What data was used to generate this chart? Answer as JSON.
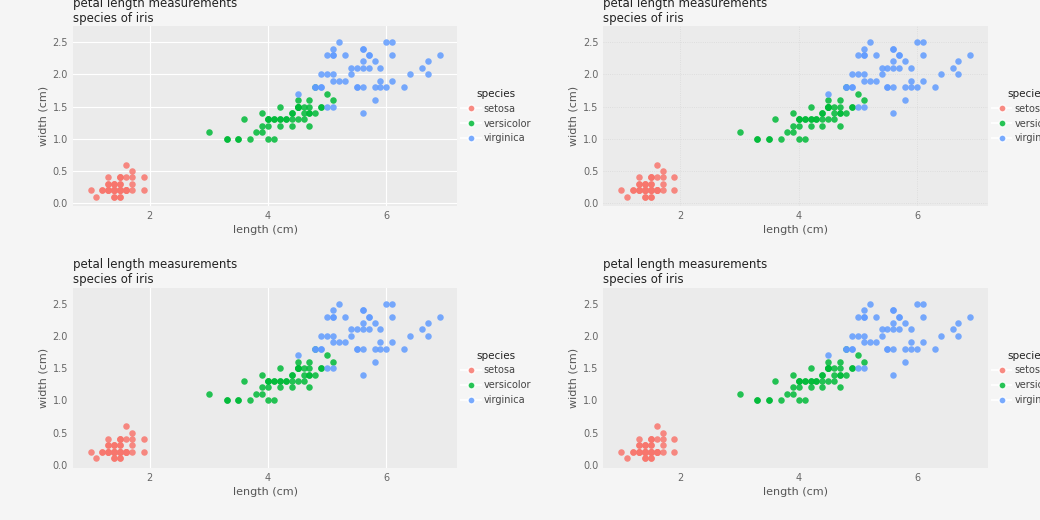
{
  "title": "petal length measurements",
  "subtitle": "species of iris",
  "xlabel": "length (cm)",
  "ylabel": "width (cm)",
  "legend_title": "species",
  "species": [
    "setosa",
    "versicolor",
    "virginica"
  ],
  "colors": {
    "setosa": "#F8766D",
    "versicolor": "#00BA38",
    "virginica": "#619CFF"
  },
  "setosa_length": [
    1.4,
    1.4,
    1.3,
    1.5,
    1.4,
    1.7,
    1.4,
    1.5,
    1.4,
    1.5,
    1.5,
    1.6,
    1.4,
    1.1,
    1.2,
    1.5,
    1.3,
    1.4,
    1.7,
    1.5,
    1.7,
    1.5,
    1.0,
    1.7,
    1.9,
    1.6,
    1.6,
    1.5,
    1.4,
    1.6,
    1.6,
    1.5,
    1.5,
    1.4,
    1.5,
    1.2,
    1.3,
    1.4,
    1.3,
    1.5,
    1.3,
    1.3,
    1.3,
    1.6,
    1.9,
    1.4,
    1.6,
    1.4,
    1.5,
    1.4
  ],
  "setosa_width": [
    0.2,
    0.2,
    0.2,
    0.2,
    0.2,
    0.4,
    0.3,
    0.2,
    0.2,
    0.1,
    0.2,
    0.2,
    0.1,
    0.1,
    0.2,
    0.4,
    0.4,
    0.3,
    0.3,
    0.3,
    0.2,
    0.4,
    0.2,
    0.5,
    0.2,
    0.2,
    0.4,
    0.2,
    0.2,
    0.2,
    0.2,
    0.4,
    0.1,
    0.2,
    0.2,
    0.2,
    0.2,
    0.1,
    0.2,
    0.3,
    0.3,
    0.3,
    0.2,
    0.6,
    0.4,
    0.3,
    0.2,
    0.2,
    0.2,
    0.2
  ],
  "versicolor_length": [
    4.7,
    4.5,
    4.9,
    4.0,
    4.6,
    4.5,
    4.7,
    3.3,
    4.6,
    3.9,
    3.5,
    4.2,
    4.0,
    4.7,
    3.6,
    4.4,
    4.5,
    4.1,
    4.5,
    3.9,
    4.8,
    4.0,
    4.9,
    4.7,
    4.3,
    4.4,
    4.8,
    5.0,
    4.5,
    3.5,
    3.8,
    3.7,
    3.9,
    5.1,
    4.5,
    4.5,
    4.7,
    4.4,
    4.1,
    4.0,
    4.4,
    4.6,
    4.0,
    3.3,
    4.2,
    4.2,
    4.2,
    4.3,
    3.0,
    4.1
  ],
  "versicolor_width": [
    1.4,
    1.5,
    1.5,
    1.3,
    1.5,
    1.3,
    1.6,
    1.0,
    1.3,
    1.4,
    1.0,
    1.5,
    1.0,
    1.4,
    1.3,
    1.4,
    1.5,
    1.0,
    1.5,
    1.1,
    1.8,
    1.3,
    1.5,
    1.2,
    1.3,
    1.4,
    1.4,
    1.7,
    1.5,
    1.0,
    1.1,
    1.0,
    1.2,
    1.6,
    1.5,
    1.6,
    1.5,
    1.3,
    1.3,
    1.3,
    1.2,
    1.4,
    1.2,
    1.0,
    1.3,
    1.2,
    1.3,
    1.3,
    1.1,
    1.3
  ],
  "virginica_length": [
    6.0,
    5.1,
    5.9,
    5.6,
    5.8,
    6.6,
    4.5,
    6.3,
    5.8,
    6.1,
    5.1,
    5.3,
    5.5,
    5.0,
    5.1,
    5.3,
    5.5,
    6.7,
    6.9,
    5.0,
    5.7,
    4.9,
    6.7,
    4.9,
    5.7,
    6.0,
    4.8,
    4.9,
    5.6,
    5.8,
    6.1,
    6.4,
    5.6,
    5.1,
    5.6,
    6.1,
    5.6,
    5.5,
    4.8,
    5.4,
    5.6,
    5.1,
    5.9,
    5.7,
    5.2,
    5.0,
    5.2,
    5.4,
    5.1,
    5.9
  ],
  "virginica_width": [
    2.5,
    1.9,
    2.1,
    1.8,
    2.2,
    2.1,
    1.7,
    1.8,
    1.8,
    2.5,
    2.0,
    1.9,
    2.1,
    2.0,
    2.4,
    2.3,
    1.8,
    2.2,
    2.3,
    1.5,
    2.3,
    2.0,
    2.0,
    1.8,
    2.1,
    1.8,
    1.8,
    1.8,
    2.1,
    1.6,
    1.9,
    2.0,
    2.2,
    1.5,
    1.4,
    2.3,
    2.4,
    1.8,
    1.8,
    2.1,
    2.4,
    2.3,
    1.9,
    2.3,
    2.5,
    2.3,
    1.9,
    2.0,
    2.3,
    1.8
  ],
  "bg_color": "#f5f5f5",
  "grid_color": "#ffffff",
  "minor_grid_color": "#d9d9d9",
  "panel_bg": "#ebebeb",
  "alpha": 0.85,
  "xlim": [
    0.7,
    7.2
  ],
  "ylim": [
    -0.05,
    2.75
  ],
  "xticks": [
    2,
    4,
    6
  ],
  "yticks": [
    0.0,
    0.5,
    1.0,
    1.5,
    2.0,
    2.5
  ]
}
